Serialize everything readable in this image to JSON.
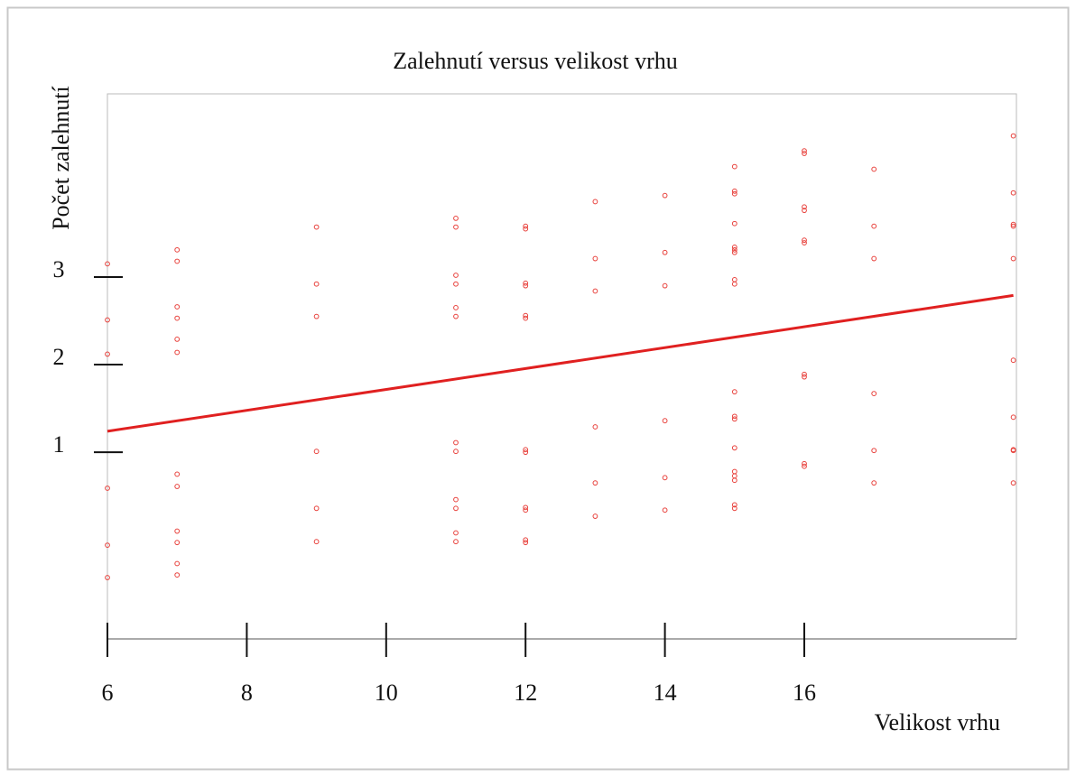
{
  "chart_data": {
    "type": "scatter",
    "title": "Zalehnutí versus velikost vrhu",
    "xlabel": "Velikost vrhu",
    "ylabel": "Počet zalehnutí",
    "xlim": [
      6,
      19
    ],
    "ylim": [
      -1.13,
      5.09
    ],
    "xticks": [
      6,
      8,
      10,
      12,
      14,
      16
    ],
    "yticks": [
      1,
      2,
      3
    ],
    "points": {
      "color": "#e8413c",
      "x": [
        6,
        6,
        6,
        6,
        6,
        6,
        7,
        7,
        7,
        7,
        7,
        7,
        7,
        7,
        7,
        7,
        7,
        7,
        9,
        9,
        9,
        9,
        9,
        9,
        11,
        11,
        11,
        11,
        11,
        11,
        11,
        11,
        11,
        11,
        11,
        11,
        12,
        12,
        12,
        12,
        12,
        12,
        12,
        12,
        12,
        12,
        12,
        12,
        13,
        13,
        13,
        13,
        13,
        13,
        14,
        14,
        14,
        14,
        14,
        14,
        15,
        15,
        15,
        15,
        15,
        15,
        15,
        15,
        15,
        15,
        15,
        15,
        15,
        15,
        15,
        15,
        15,
        15,
        16,
        16,
        16,
        16,
        16,
        16,
        16,
        16,
        16,
        16,
        17,
        17,
        17,
        17,
        17,
        17,
        19,
        19,
        19,
        19,
        19,
        19,
        19,
        19,
        19,
        19
      ],
      "y": [
        3.15,
        2.51,
        2.12,
        0.59,
        -0.06,
        -0.43,
        3.31,
        3.18,
        2.66,
        2.53,
        2.29,
        2.14,
        0.75,
        0.61,
        0.1,
        -0.03,
        -0.27,
        -0.4,
        3.57,
        2.92,
        2.55,
        1.01,
        0.36,
        -0.02,
        3.67,
        3.57,
        3.02,
        2.92,
        2.65,
        2.55,
        1.11,
        1.01,
        0.46,
        0.36,
        0.08,
        -0.02,
        3.58,
        3.55,
        2.93,
        2.9,
        2.56,
        2.53,
        1.03,
        1.0,
        0.37,
        0.34,
        0.0,
        -0.03,
        3.86,
        3.21,
        2.84,
        1.29,
        0.65,
        0.27,
        3.93,
        3.28,
        2.9,
        1.36,
        0.71,
        0.34,
        4.26,
        3.98,
        3.95,
        3.61,
        3.34,
        3.31,
        3.28,
        2.97,
        2.92,
        1.69,
        1.41,
        1.38,
        1.05,
        0.78,
        0.73,
        0.68,
        0.4,
        0.36,
        4.44,
        4.41,
        3.8,
        3.76,
        3.42,
        3.39,
        1.89,
        1.86,
        0.87,
        0.84,
        4.23,
        3.58,
        3.21,
        1.67,
        1.02,
        0.65,
        4.61,
        3.96,
        3.6,
        3.58,
        3.21,
        2.05,
        1.4,
        1.03,
        1.02,
        0.65
      ]
    },
    "fit_line": {
      "color": "#e02020",
      "x": [
        6,
        19
      ],
      "y": [
        1.24,
        2.79
      ]
    }
  }
}
